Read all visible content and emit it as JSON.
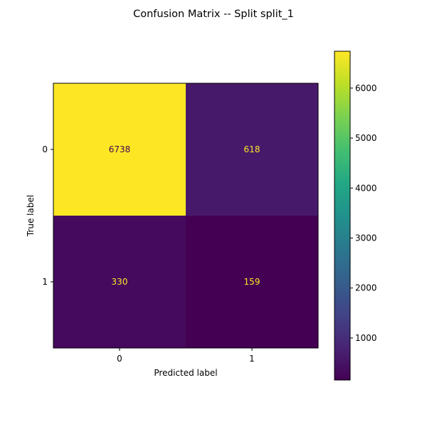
{
  "chart_data": {
    "type": "heatmap",
    "title": "Confusion Matrix -- Split split_1",
    "xlabel": "Predicted label",
    "ylabel": "True label",
    "x_tick_labels": [
      "0",
      "1"
    ],
    "y_tick_labels": [
      "0",
      "1"
    ],
    "matrix": [
      [
        6738,
        618
      ],
      [
        330,
        159
      ]
    ],
    "colormap": "viridis",
    "colorbar": {
      "ticks": [
        1000,
        2000,
        3000,
        4000,
        5000,
        6000
      ],
      "tick_labels": [
        "1000",
        "2000",
        "3000",
        "4000",
        "5000",
        "6000"
      ],
      "range": [
        159,
        6738
      ]
    },
    "cell_text_colors": {
      "on_dark": "#fde725",
      "on_light": "#440154"
    }
  }
}
